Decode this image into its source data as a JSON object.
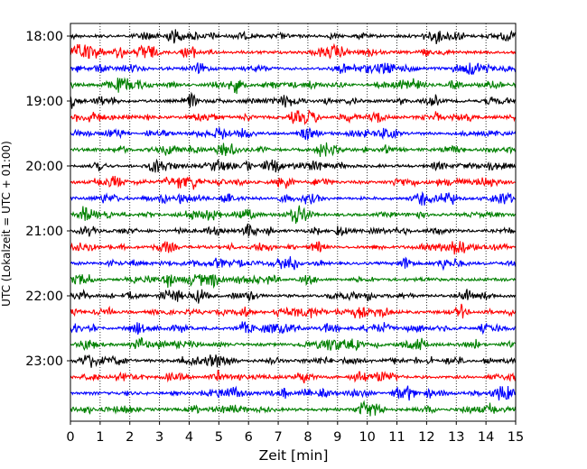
{
  "chart_data": {
    "type": "line",
    "title": "",
    "xlabel": "Zeit  [min]",
    "ylabel": "UTC (Lokalzeit = UTC + 01:00)",
    "xlim": [
      0,
      15
    ],
    "x_ticks": [
      "0",
      "1",
      "2",
      "3",
      "4",
      "5",
      "6",
      "7",
      "8",
      "9",
      "10",
      "11",
      "12",
      "13",
      "14",
      "15"
    ],
    "y_tick_labels": [
      "18:00",
      "19:00",
      "20:00",
      "21:00",
      "22:00",
      "23:00"
    ],
    "grid": "vertical dotted",
    "trace_minutes": 15,
    "colors": [
      "#000000",
      "#ff0000",
      "#0000ff",
      "#008000"
    ],
    "series": [
      {
        "start": "18:00",
        "color": "#000000"
      },
      {
        "start": "18:15",
        "color": "#ff0000"
      },
      {
        "start": "18:30",
        "color": "#0000ff"
      },
      {
        "start": "18:45",
        "color": "#008000"
      },
      {
        "start": "19:00",
        "color": "#000000"
      },
      {
        "start": "19:15",
        "color": "#ff0000"
      },
      {
        "start": "19:30",
        "color": "#0000ff"
      },
      {
        "start": "19:45",
        "color": "#008000"
      },
      {
        "start": "20:00",
        "color": "#000000"
      },
      {
        "start": "20:15",
        "color": "#ff0000"
      },
      {
        "start": "20:30",
        "color": "#0000ff"
      },
      {
        "start": "20:45",
        "color": "#008000"
      },
      {
        "start": "21:00",
        "color": "#000000"
      },
      {
        "start": "21:15",
        "color": "#ff0000"
      },
      {
        "start": "21:30",
        "color": "#0000ff"
      },
      {
        "start": "21:45",
        "color": "#008000"
      },
      {
        "start": "22:00",
        "color": "#000000"
      },
      {
        "start": "22:15",
        "color": "#ff0000"
      },
      {
        "start": "22:30",
        "color": "#0000ff"
      },
      {
        "start": "22:45",
        "color": "#008000"
      },
      {
        "start": "23:00",
        "color": "#000000"
      },
      {
        "start": "23:15",
        "color": "#ff0000"
      },
      {
        "start": "23:30",
        "color": "#0000ff"
      },
      {
        "start": "23:45",
        "color": "#008000"
      }
    ]
  }
}
